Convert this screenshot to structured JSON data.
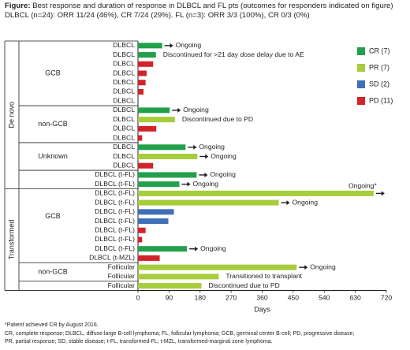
{
  "header": {
    "title_label": "Figure:",
    "title_text": "Best response and duration of response in DLBCL and FL pts (outcomes for responders indicated on figure)",
    "subtitle": "DLBCL (n=24): ORR 11/24 (46%), CR 7/24 (29%). FL (n=3): ORR 3/3 (100%), CR 0/3 (0%)"
  },
  "colors": {
    "CR": "#22a04b",
    "PR": "#a7cc3c",
    "SD": "#3f6fb6",
    "PD": "#d1232a",
    "line": "#231f20"
  },
  "chart_data": {
    "type": "bar",
    "orientation": "horizontal",
    "xlabel": "Days",
    "xlim": [
      0,
      720
    ],
    "xticks": [
      0,
      90,
      180,
      270,
      360,
      450,
      540,
      630,
      720
    ],
    "legend": [
      {
        "key": "CR",
        "label": "CR (7)"
      },
      {
        "key": "PR",
        "label": "PR (7)"
      },
      {
        "key": "SD",
        "label": "SD (2)"
      },
      {
        "key": "PD",
        "label": "PD (11)"
      }
    ],
    "legend_position": "top-right",
    "groups": [
      {
        "label": "De novo",
        "start": 0,
        "end": 16
      },
      {
        "label": "Transformed",
        "start": 16,
        "end": 27
      }
    ],
    "subgroups": [
      {
        "label": "GCB",
        "start": 0,
        "end": 7
      },
      {
        "label": "non-GCB",
        "start": 7,
        "end": 11
      },
      {
        "label": "Unknown",
        "start": 11,
        "end": 14
      },
      {
        "label": "GCB",
        "start": 14,
        "end": 24
      },
      {
        "label": "non-GCB",
        "start": 24,
        "end": 26
      },
      {
        "label": "",
        "start": 26,
        "end": 29
      }
    ],
    "patients": [
      {
        "label": "DLBCL",
        "days": 70,
        "response": "CR",
        "arrow": true,
        "annotation": "Ongoing"
      },
      {
        "label": "DLBCL",
        "days": 52,
        "response": "CR",
        "arrow": false,
        "annotation": "Discontinued for >21 day dose delay due to AE"
      },
      {
        "label": "DLBCL",
        "days": 44,
        "response": "PD",
        "arrow": false,
        "annotation": ""
      },
      {
        "label": "DLBCL",
        "days": 25,
        "response": "PD",
        "arrow": false,
        "annotation": ""
      },
      {
        "label": "DLBCL",
        "days": 22,
        "response": "PD",
        "arrow": false,
        "annotation": ""
      },
      {
        "label": "DLBCL",
        "days": 16,
        "response": "PD",
        "arrow": false,
        "annotation": ""
      },
      {
        "label": "DLBCL",
        "days": 0,
        "response": "PD",
        "arrow": false,
        "annotation": ""
      },
      {
        "label": "DLBCL",
        "days": 92,
        "response": "CR",
        "arrow": true,
        "annotation": "Ongoing"
      },
      {
        "label": "DLBCL",
        "days": 107,
        "response": "PR",
        "arrow": false,
        "annotation": "Discontinued due to PD"
      },
      {
        "label": "DLBCL",
        "days": 53,
        "response": "PD",
        "arrow": false,
        "annotation": ""
      },
      {
        "label": "DLBCL",
        "days": 12,
        "response": "PD",
        "arrow": false,
        "annotation": ""
      },
      {
        "label": "DLBCL",
        "days": 138,
        "response": "CR",
        "arrow": true,
        "annotation": "Ongoing"
      },
      {
        "label": "DLBCL",
        "days": 172,
        "response": "PR",
        "arrow": true,
        "annotation": "Ongoing"
      },
      {
        "label": "DLBCL",
        "days": 44,
        "response": "PD",
        "arrow": false,
        "annotation": ""
      },
      {
        "label": "DLBCL (t-FL)",
        "days": 170,
        "response": "CR",
        "arrow": true,
        "annotation": "Ongoing"
      },
      {
        "label": "DLBCL (t-FL)",
        "days": 120,
        "response": "CR",
        "arrow": true,
        "annotation": "Ongoing"
      },
      {
        "label": "DLBCL (t-FL)",
        "days": 683,
        "response": "PR",
        "arrow": true,
        "annotation": "Ongoing*"
      },
      {
        "label": "DLBCL (t-FL)",
        "days": 408,
        "response": "PR",
        "arrow": true,
        "annotation": "Ongoing"
      },
      {
        "label": "DLBCL (t-FL)",
        "days": 104,
        "response": "SD",
        "arrow": false,
        "annotation": ""
      },
      {
        "label": "DLBCL (t-FL)",
        "days": 88,
        "response": "SD",
        "arrow": false,
        "annotation": ""
      },
      {
        "label": "DLBCL (t-FL)",
        "days": 22,
        "response": "PD",
        "arrow": false,
        "annotation": ""
      },
      {
        "label": "DLBCL (t-FL)",
        "days": 12,
        "response": "PD",
        "arrow": false,
        "annotation": ""
      },
      {
        "label": "DLBCL (t-FL)",
        "days": 142,
        "response": "CR",
        "arrow": true,
        "annotation": "Ongoing"
      },
      {
        "label": "DLBCL (t-MZL)",
        "days": 63,
        "response": "PD",
        "arrow": false,
        "annotation": ""
      },
      {
        "label": "Follicular",
        "days": 460,
        "response": "PR",
        "arrow": true,
        "annotation": "Ongoing"
      },
      {
        "label": "Follicular",
        "days": 234,
        "response": "PR",
        "arrow": false,
        "annotation": "Transitioned to transplant"
      },
      {
        "label": "Follicular",
        "days": 184,
        "response": "PR",
        "arrow": false,
        "annotation": "Discontinued due to PD"
      }
    ]
  },
  "footnote": "*Patient achieved CR by August 2016.",
  "abbreviations": [
    "CR, complete response; DLBCL, diffuse large B-cell lymphoma; FL, follicular lymphoma; GCB, germinal center B-cell; PD, progressive disease;",
    "PR, partial response; SD, stable disease; t-FL, transformed-FL; t-MZL, transformed-marginal zone lymphoma."
  ]
}
